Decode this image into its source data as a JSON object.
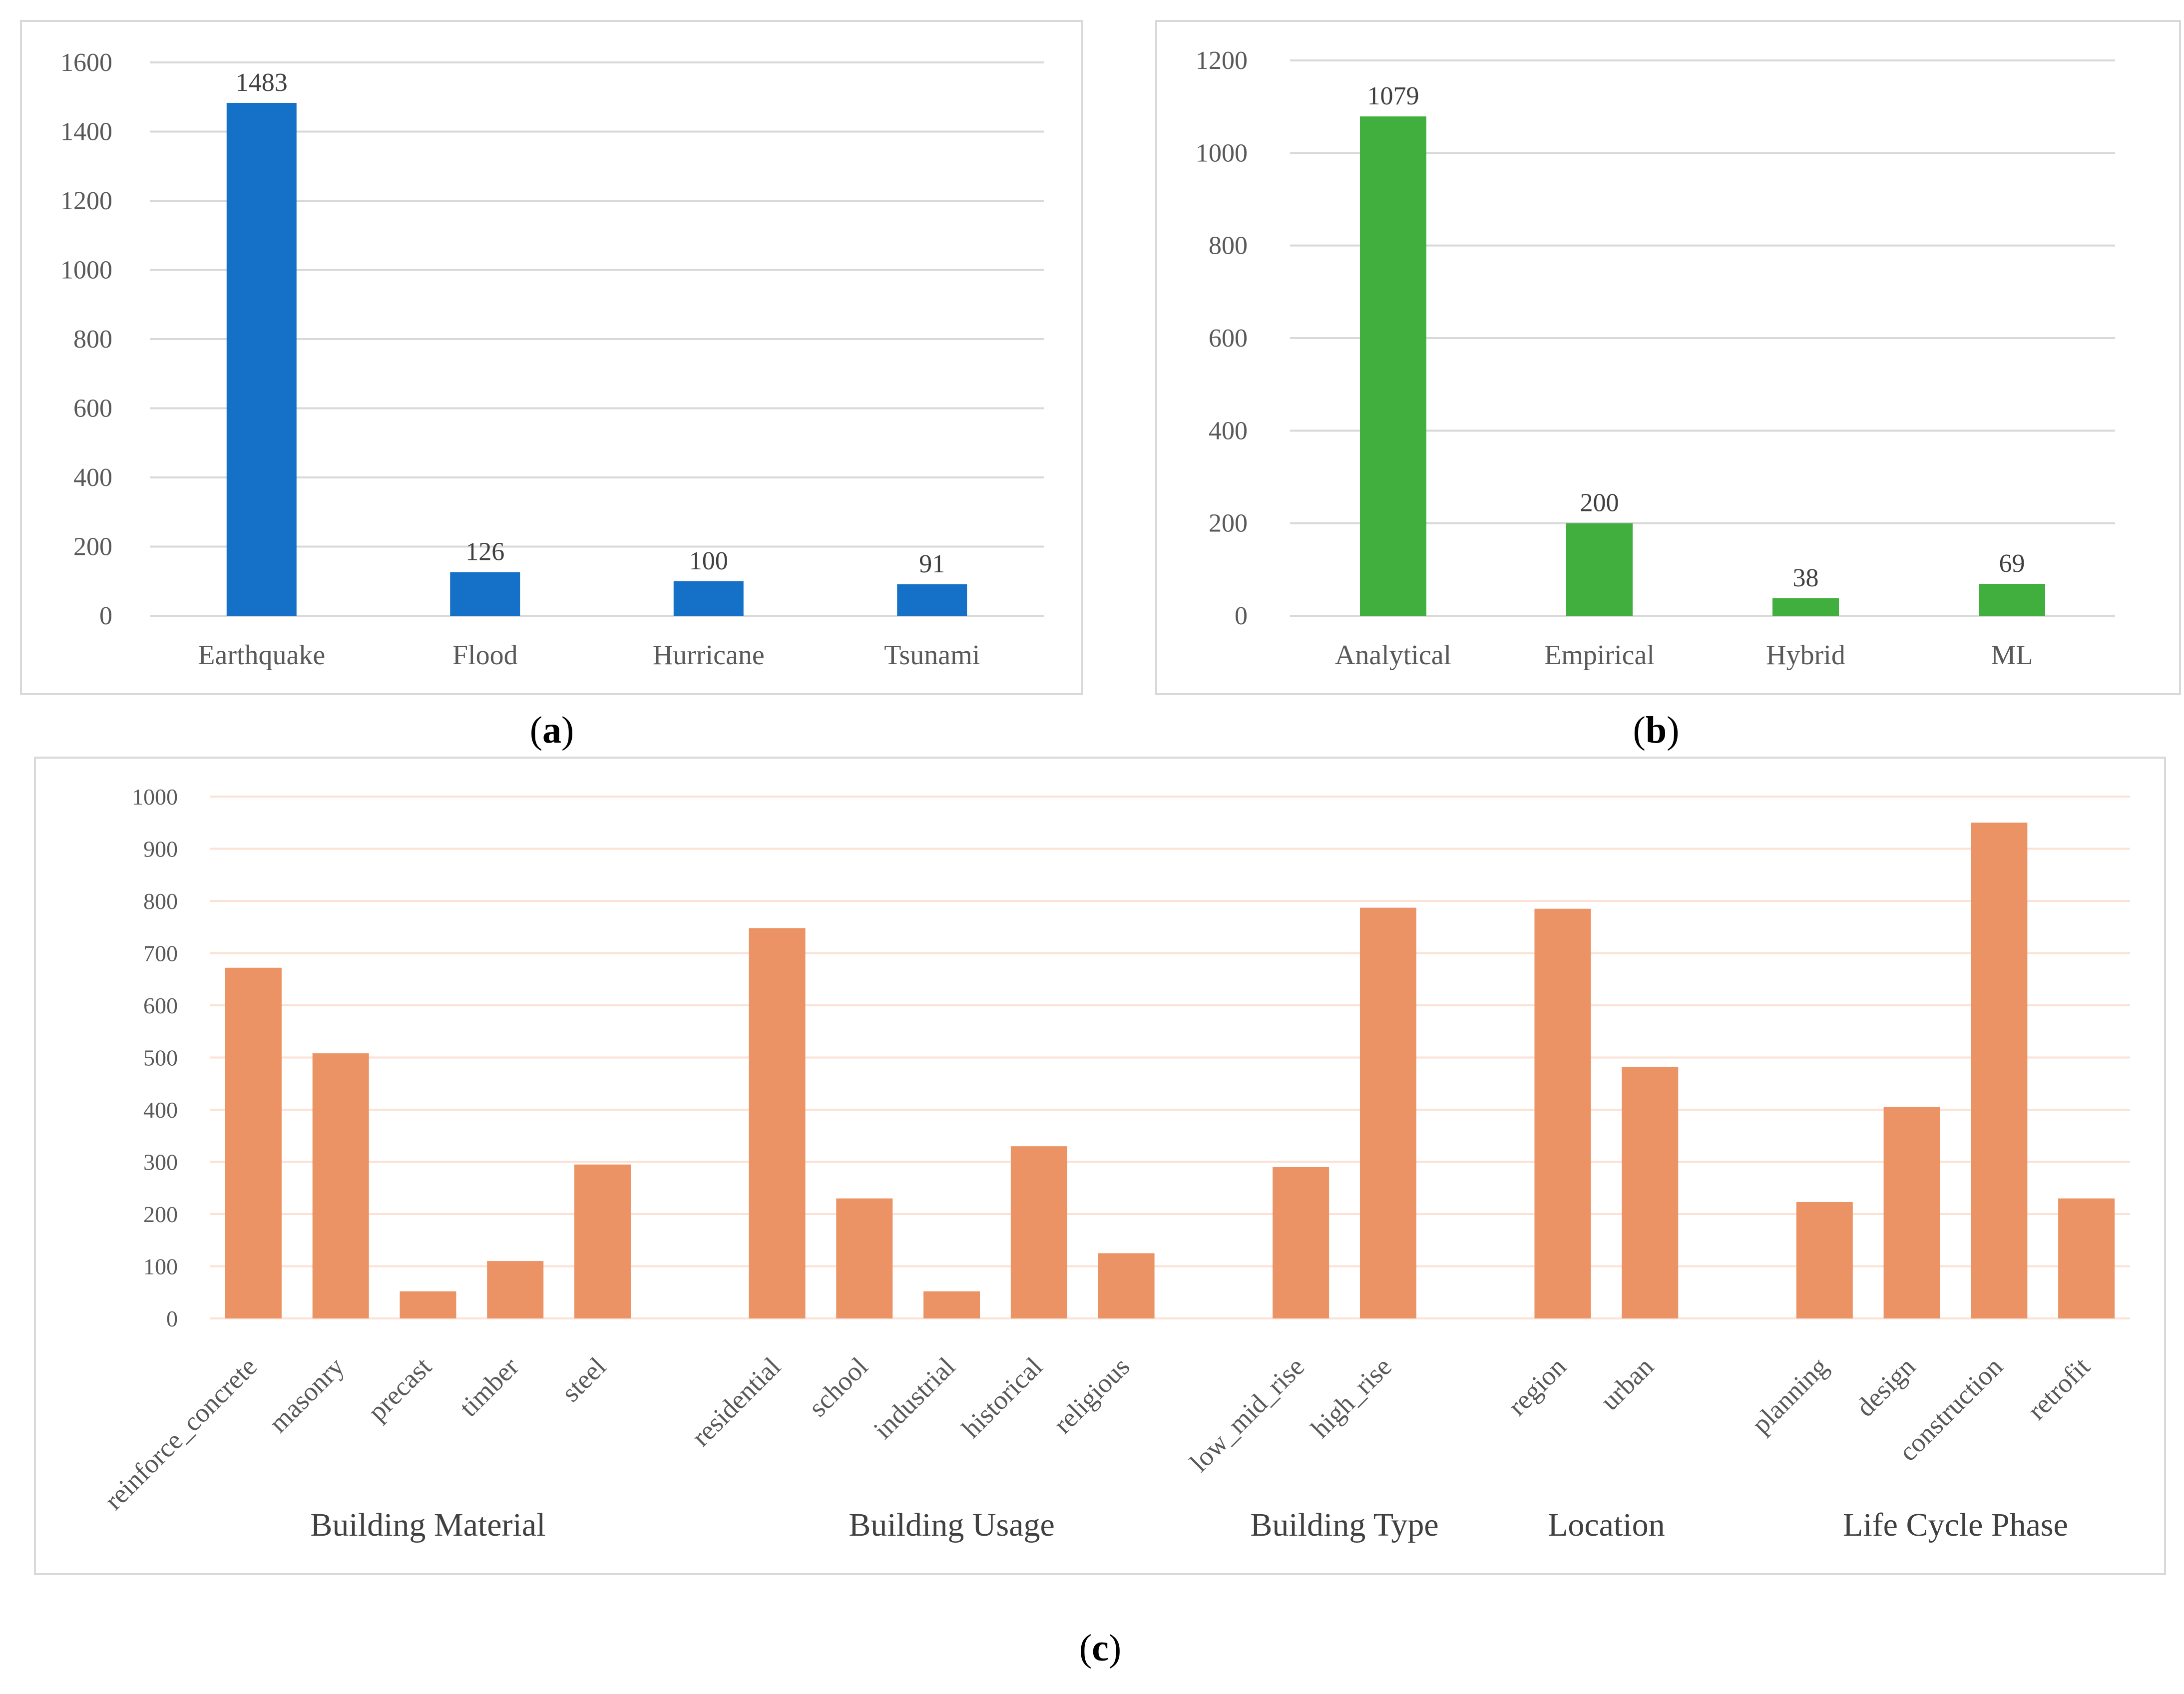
{
  "chart_data": [
    {
      "id": "a",
      "type": "bar",
      "panel_label": "a",
      "categories": [
        "Earthquake",
        "Flood",
        "Hurricane",
        "Tsunami"
      ],
      "values": [
        1483,
        126,
        100,
        91
      ],
      "data_labels": [
        "1483",
        "126",
        "100",
        "91"
      ],
      "ylim": [
        0,
        1600
      ],
      "yticks": [
        0,
        200,
        400,
        600,
        800,
        1000,
        1200,
        1400,
        1600
      ],
      "ytick_labels": [
        "0",
        "200",
        "400",
        "600",
        "800",
        "1000",
        "1200",
        "1400",
        "1600"
      ],
      "grid": true,
      "title": "",
      "xlabel": "",
      "ylabel": "",
      "color": "#1570C8"
    },
    {
      "id": "b",
      "type": "bar",
      "panel_label": "b",
      "categories": [
        "Analytical",
        "Empirical",
        "Hybrid",
        "ML"
      ],
      "values": [
        1079,
        200,
        38,
        69
      ],
      "data_labels": [
        "1079",
        "200",
        "38",
        "69"
      ],
      "ylim": [
        0,
        1200
      ],
      "yticks": [
        0,
        200,
        400,
        600,
        800,
        1000,
        1200
      ],
      "ytick_labels": [
        "0",
        "200",
        "400",
        "600",
        "800",
        "1000",
        "1200"
      ],
      "grid": true,
      "title": "",
      "xlabel": "",
      "ylabel": "",
      "color": "#41AF3E"
    },
    {
      "id": "c",
      "type": "bar",
      "panel_label": "c",
      "ylim": [
        0,
        1000
      ],
      "yticks": [
        0,
        100,
        200,
        300,
        400,
        500,
        600,
        700,
        800,
        900,
        1000
      ],
      "ytick_labels": [
        "0",
        "100",
        "200",
        "300",
        "400",
        "500",
        "600",
        "700",
        "800",
        "900",
        "1000"
      ],
      "grid": true,
      "title": "",
      "color": "#EB9365",
      "groups": [
        {
          "name": "Building Material",
          "categories": [
            "reinforce_concrete",
            "masonry",
            "precast",
            "timber",
            "steel"
          ],
          "values": [
            672,
            508,
            52,
            110,
            295
          ]
        },
        {
          "name": "Building Usage",
          "categories": [
            "residential",
            "school",
            "industrial",
            "historical",
            "religious"
          ],
          "values": [
            748,
            230,
            52,
            330,
            125
          ]
        },
        {
          "name": "Building Type",
          "categories": [
            "low_mid_rise",
            "high_rise"
          ],
          "values": [
            290,
            787
          ]
        },
        {
          "name": "Location",
          "categories": [
            "region",
            "urban"
          ],
          "values": [
            785,
            482
          ]
        },
        {
          "name": "Life Cycle Phase",
          "categories": [
            "planning",
            "design",
            "construction",
            "retrofit"
          ],
          "values": [
            223,
            405,
            950,
            230
          ]
        }
      ]
    }
  ]
}
